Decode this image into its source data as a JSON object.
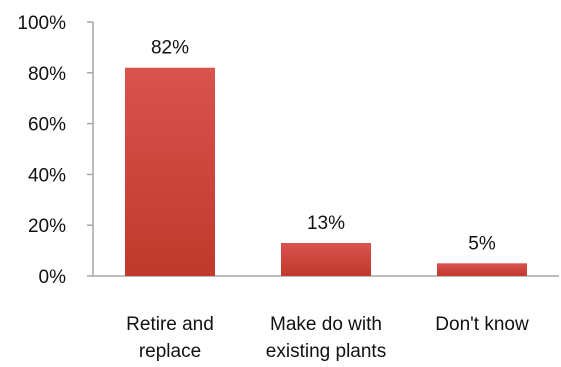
{
  "chart_data": {
    "type": "bar",
    "categories": [
      [
        "Retire and",
        "replace"
      ],
      [
        "Make do with",
        "existing plants"
      ],
      [
        "Don't know"
      ]
    ],
    "values": [
      82,
      13,
      5
    ],
    "data_labels": [
      "82%",
      "13%",
      "5%"
    ],
    "ylim": [
      0,
      100
    ],
    "y_ticks": [
      {
        "value": 0,
        "label": "0%"
      },
      {
        "value": 20,
        "label": "20%"
      },
      {
        "value": 40,
        "label": "40%"
      },
      {
        "value": 60,
        "label": "60%"
      },
      {
        "value": 80,
        "label": "80%"
      },
      {
        "value": 100,
        "label": "100%"
      }
    ],
    "title": "",
    "xlabel": "",
    "ylabel": "",
    "grid": false,
    "legend": "none",
    "colors": {
      "bar_top": "#d9534f",
      "bar_bottom": "#c0392b",
      "axis": "#a6a6a6"
    }
  }
}
